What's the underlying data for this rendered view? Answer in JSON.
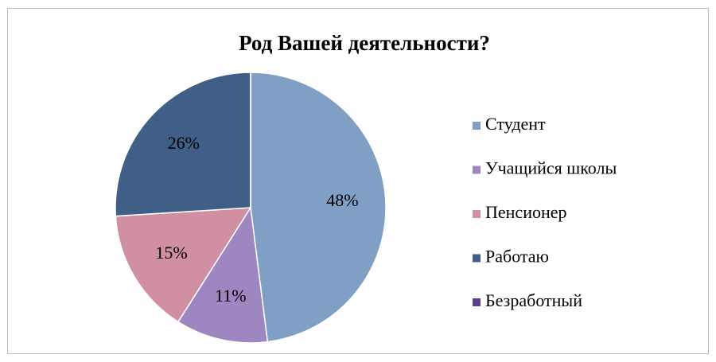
{
  "chart_data": {
    "type": "pie",
    "title": "Род Вашей деятельности?",
    "categories": [
      "Студент",
      "Учащийся школы",
      "Пенсионер",
      "Работаю",
      "Безработный"
    ],
    "values": [
      48,
      11,
      15,
      26,
      0
    ],
    "value_labels": [
      "48%",
      "11%",
      "15%",
      "26%",
      null
    ],
    "colors": [
      "#7f9fc5",
      "#9e86c1",
      "#d090a1",
      "#3f5f87",
      "#5b3f8a"
    ],
    "legend": "right"
  }
}
